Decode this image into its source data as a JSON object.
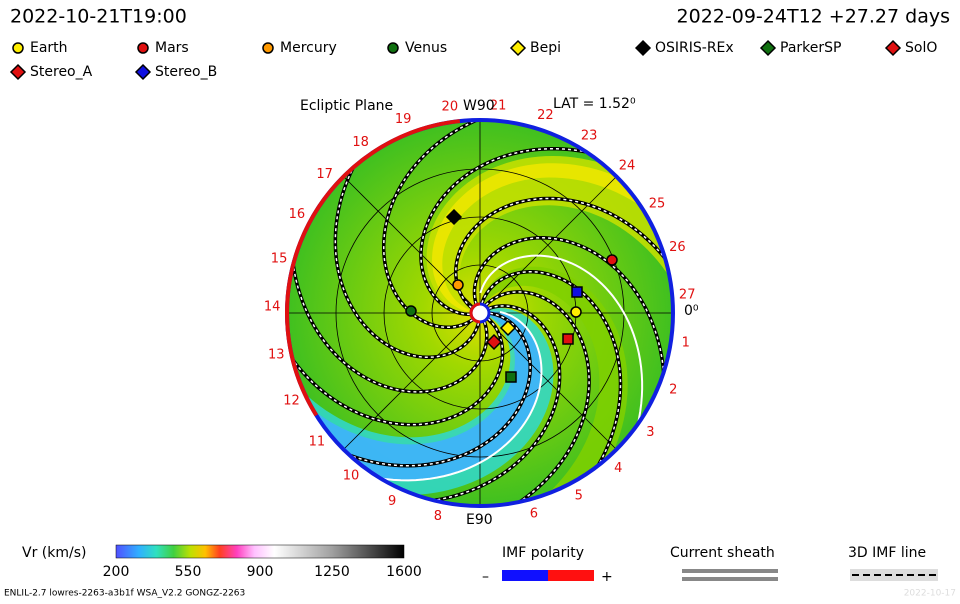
{
  "header": {
    "time": "2022-10-21T19:00",
    "run": "2022-09-24T12 +27.27 days"
  },
  "legend": [
    {
      "label": "Earth"
    },
    {
      "label": "Mars"
    },
    {
      "label": "Mercury"
    },
    {
      "label": "Venus"
    },
    {
      "label": "Bepi"
    },
    {
      "label": "OSIRIS-REx"
    },
    {
      "label": "ParkerSP"
    },
    {
      "label": "SolO"
    },
    {
      "label": "Stereo_A"
    },
    {
      "label": "Stereo_B"
    }
  ],
  "plot": {
    "plane": "Ecliptic Plane",
    "top": "W90",
    "lat": "LAT = 1.52⁰",
    "bottom": "E90",
    "right": "0⁰",
    "rim_labels": [
      "1",
      "2",
      "3",
      "4",
      "5",
      "6",
      "8",
      "9",
      "10",
      "11",
      "12",
      "13",
      "14",
      "15",
      "16",
      "17",
      "18",
      "19",
      "20",
      "21",
      "22",
      "23",
      "24",
      "25",
      "26",
      "27"
    ]
  },
  "colorbar": {
    "title": "Vr (km/s)",
    "ticks": [
      "200",
      "550",
      "900",
      "1250",
      "1600"
    ]
  },
  "polarity": {
    "title": "IMF polarity",
    "minus": "–",
    "plus": "+"
  },
  "sheath": {
    "title": "Current sheath"
  },
  "imf_line": {
    "title": "3D IMF line"
  },
  "footer": {
    "left": "ENLIL-2.7 lowres-2263-a3b1f WSA_V2.2 GONGZ-2263",
    "right": "2022-10-17"
  }
}
